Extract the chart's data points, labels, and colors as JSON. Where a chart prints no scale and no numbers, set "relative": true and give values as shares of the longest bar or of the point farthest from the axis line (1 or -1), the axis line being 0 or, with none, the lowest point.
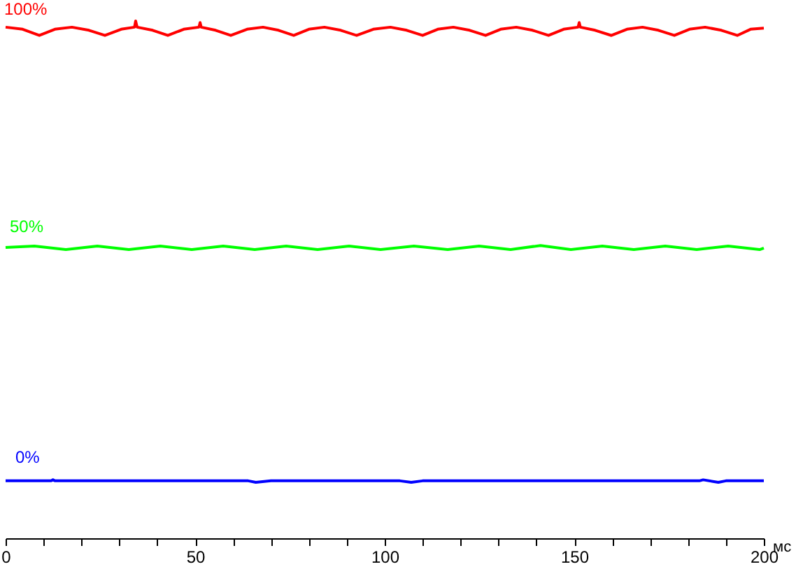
{
  "chart_data": {
    "type": "line",
    "relative": true,
    "xlabel": "мс",
    "xlim": [
      0,
      200
    ],
    "xticks": [
      0,
      {
        "value": 10,
        "label": null
      },
      {
        "value": 20,
        "label": null
      },
      {
        "value": 30,
        "label": null
      },
      {
        "value": 40,
        "label": null
      },
      50,
      {
        "value": 60,
        "label": null
      },
      {
        "value": 70,
        "label": null
      },
      {
        "value": 80,
        "label": null
      },
      {
        "value": 90,
        "label": null
      },
      100,
      {
        "value": 110,
        "label": null
      },
      {
        "value": 120,
        "label": null
      },
      {
        "value": 130,
        "label": null
      },
      {
        "value": 140,
        "label": null
      },
      150,
      {
        "value": 160,
        "label": null
      },
      {
        "value": 170,
        "label": null
      },
      {
        "value": 180,
        "label": null
      },
      {
        "value": 190,
        "label": null
      },
      200
    ],
    "series": [
      {
        "name": "100%",
        "color": "#ff0000",
        "x": [
          0,
          4.5,
          8.9,
          13,
          17.5,
          22,
          26.2,
          30.5,
          34.0,
          34.3,
          34.7,
          38.8,
          42.8,
          47,
          51.0,
          51.3,
          51.6,
          55.4,
          59.4,
          63.7,
          67.9,
          72,
          76.0,
          80,
          84.1,
          88.4,
          92.6,
          97,
          101.5,
          105.8,
          110.0,
          114,
          118.1,
          122.4,
          126.6,
          130.6,
          134.7,
          139,
          143.2,
          147.2,
          151.0,
          151.3,
          151.6,
          155.5,
          159.8,
          163.9,
          168.0,
          172.2,
          176.4,
          180.4,
          184.5,
          188.8,
          193.0,
          196.5,
          200
        ],
        "values": [
          0.988,
          0.984,
          0.972,
          0.984,
          0.988,
          0.982,
          0.972,
          0.984,
          0.988,
          1.0,
          0.988,
          0.982,
          0.972,
          0.984,
          0.988,
          0.997,
          0.988,
          0.982,
          0.972,
          0.984,
          0.988,
          0.982,
          0.972,
          0.984,
          0.988,
          0.982,
          0.972,
          0.984,
          0.988,
          0.982,
          0.972,
          0.984,
          0.988,
          0.982,
          0.972,
          0.984,
          0.988,
          0.982,
          0.972,
          0.984,
          0.988,
          0.997,
          0.988,
          0.982,
          0.972,
          0.984,
          0.988,
          0.982,
          0.972,
          0.984,
          0.988,
          0.982,
          0.972,
          0.984,
          0.986
        ]
      },
      {
        "name": "50%",
        "color": "#00ff00",
        "x": [
          0,
          7.6,
          15.9,
          24.2,
          32.5,
          40.8,
          49.1,
          57.4,
          65.7,
          74.0,
          82.3,
          90.6,
          98.9,
          107.7,
          116.6,
          124.9,
          133.2,
          141.1,
          149.1,
          157.4,
          165.7,
          174.0,
          182.3,
          190.6,
          198.9,
          200
        ],
        "values": [
          0.562,
          0.565,
          0.558,
          0.565,
          0.558,
          0.565,
          0.558,
          0.565,
          0.558,
          0.565,
          0.558,
          0.565,
          0.558,
          0.565,
          0.558,
          0.565,
          0.558,
          0.566,
          0.558,
          0.565,
          0.558,
          0.565,
          0.558,
          0.565,
          0.558,
          0.561
        ]
      },
      {
        "name": "0%",
        "color": "#0000ff",
        "x": [
          0,
          12,
          12.5,
          13,
          64,
          66,
          70,
          104,
          107,
          110,
          150,
          183,
          184,
          188,
          190,
          200
        ],
        "values": [
          0.111,
          0.111,
          0.113,
          0.111,
          0.111,
          0.108,
          0.111,
          0.111,
          0.108,
          0.111,
          0.111,
          0.111,
          0.113,
          0.108,
          0.111,
          0.111
        ]
      }
    ]
  }
}
